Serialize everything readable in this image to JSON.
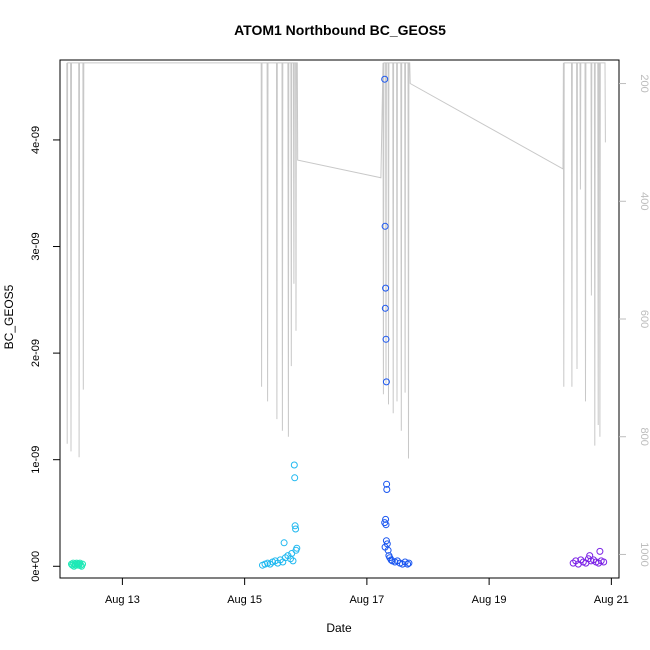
{
  "chart_data": {
    "type": "scatter",
    "title": "ATOM1 Northbound BC_GEOS5",
    "xlabel": "Date",
    "ylabel": "BC_GEOS5",
    "x_axis_type": "date",
    "xlim": [
      "2016-08-11 23:30",
      "2016-08-21 03:00"
    ],
    "ylim": [
      -1.1e-10,
      4.75e-09
    ],
    "x_ticks": [
      {
        "label": "Aug 13",
        "value": "2016-08-13"
      },
      {
        "label": "Aug 15",
        "value": "2016-08-15"
      },
      {
        "label": "Aug 17",
        "value": "2016-08-17"
      },
      {
        "label": "Aug 19",
        "value": "2016-08-19"
      },
      {
        "label": "Aug 21",
        "value": "2016-08-21"
      }
    ],
    "y_ticks": [
      {
        "label": "0e+00",
        "value": 0
      },
      {
        "label": "1e-09",
        "value": 1e-09
      },
      {
        "label": "2e-09",
        "value": 2e-09
      },
      {
        "label": "3e-09",
        "value": 3e-09
      },
      {
        "label": "4e-09",
        "value": 4e-09
      }
    ],
    "y2_axis": {
      "reversed": true,
      "range": [
        1040,
        160
      ],
      "ticks": [
        {
          "label": "200",
          "value": 200
        },
        {
          "label": "400",
          "value": 400
        },
        {
          "label": "600",
          "value": 600
        },
        {
          "label": "800",
          "value": 800
        },
        {
          "label": "1000",
          "value": 1000
        }
      ],
      "color": "#bdbdbd"
    },
    "grid": false,
    "legend": "none",
    "series": [
      {
        "marker": "open-circle",
        "color": "#1de9b6",
        "points": [
          [
            "2016-08-12 04:00",
            2e-11
          ],
          [
            "2016-08-12 04:20",
            1e-11
          ],
          [
            "2016-08-12 04:40",
            3e-11
          ],
          [
            "2016-08-12 05:00",
            0
          ],
          [
            "2016-08-12 05:20",
            2e-11
          ],
          [
            "2016-08-12 05:40",
            1e-11
          ],
          [
            "2016-08-12 06:00",
            3e-11
          ],
          [
            "2016-08-12 06:20",
            2e-11
          ],
          [
            "2016-08-12 06:40",
            1e-11
          ],
          [
            "2016-08-12 07:00",
            2e-11
          ],
          [
            "2016-08-12 07:20",
            3e-11
          ],
          [
            "2016-08-12 07:40",
            1e-11
          ],
          [
            "2016-08-12 08:00",
            0
          ],
          [
            "2016-08-12 08:20",
            2e-11
          ]
        ]
      },
      {
        "marker": "open-circle",
        "color": "#1fb8f0",
        "points": [
          [
            "2016-08-15 07:00",
            1e-11
          ],
          [
            "2016-08-15 08:00",
            2e-11
          ],
          [
            "2016-08-15 09:00",
            3e-11
          ],
          [
            "2016-08-15 10:00",
            2e-11
          ],
          [
            "2016-08-15 11:00",
            4e-11
          ],
          [
            "2016-08-15 12:00",
            5e-11
          ],
          [
            "2016-08-15 13:00",
            3e-11
          ],
          [
            "2016-08-15 14:00",
            6e-11
          ],
          [
            "2016-08-15 15:00",
            4e-11
          ],
          [
            "2016-08-15 15:30",
            2.2e-10
          ],
          [
            "2016-08-15 16:00",
            8e-11
          ],
          [
            "2016-08-15 17:00",
            1e-10
          ],
          [
            "2016-08-15 18:00",
            7e-11
          ],
          [
            "2016-08-15 18:30",
            1.2e-10
          ],
          [
            "2016-08-15 19:00",
            5e-11
          ],
          [
            "2016-08-15 19:30",
            9.5e-10
          ],
          [
            "2016-08-15 19:40",
            8.3e-10
          ],
          [
            "2016-08-15 19:50",
            3.8e-10
          ],
          [
            "2016-08-15 20:00",
            3.5e-10
          ],
          [
            "2016-08-15 20:10",
            1.5e-10
          ],
          [
            "2016-08-15 20:30",
            1.7e-10
          ]
        ]
      },
      {
        "marker": "open-circle",
        "color": "#1a56f0",
        "points": [
          [
            "2016-08-17 07:00",
            4.57e-09
          ],
          [
            "2016-08-17 07:10",
            3.19e-09
          ],
          [
            "2016-08-17 07:20",
            2.61e-09
          ],
          [
            "2016-08-17 07:15",
            2.42e-09
          ],
          [
            "2016-08-17 07:30",
            2.13e-09
          ],
          [
            "2016-08-17 07:40",
            1.73e-09
          ],
          [
            "2016-08-17 07:45",
            7.7e-10
          ],
          [
            "2016-08-17 07:50",
            7.2e-10
          ],
          [
            "2016-08-17 07:20",
            4.4e-10
          ],
          [
            "2016-08-17 07:00",
            4.1e-10
          ],
          [
            "2016-08-17 07:30",
            3.9e-10
          ],
          [
            "2016-08-17 07:40",
            2.4e-10
          ],
          [
            "2016-08-17 08:00",
            2.1e-10
          ],
          [
            "2016-08-17 07:10",
            1.8e-10
          ],
          [
            "2016-08-17 08:20",
            1.5e-10
          ],
          [
            "2016-08-17 08:40",
            1e-10
          ],
          [
            "2016-08-17 09:00",
            8e-11
          ],
          [
            "2016-08-17 09:30",
            6e-11
          ],
          [
            "2016-08-17 10:00",
            5e-11
          ],
          [
            "2016-08-17 11:00",
            4e-11
          ],
          [
            "2016-08-17 12:00",
            5e-11
          ],
          [
            "2016-08-17 13:00",
            3e-11
          ],
          [
            "2016-08-17 14:00",
            2e-11
          ],
          [
            "2016-08-17 15:00",
            4e-11
          ],
          [
            "2016-08-17 16:00",
            2e-11
          ],
          [
            "2016-08-17 16:30",
            3e-11
          ]
        ]
      },
      {
        "marker": "open-circle",
        "color": "#7b22e6",
        "points": [
          [
            "2016-08-20 09:00",
            3e-11
          ],
          [
            "2016-08-20 10:00",
            5e-11
          ],
          [
            "2016-08-20 11:00",
            2e-11
          ],
          [
            "2016-08-20 12:00",
            6e-11
          ],
          [
            "2016-08-20 13:00",
            4e-11
          ],
          [
            "2016-08-20 14:00",
            3e-11
          ],
          [
            "2016-08-20 15:00",
            7e-11
          ],
          [
            "2016-08-20 15:30",
            1e-10
          ],
          [
            "2016-08-20 16:00",
            5e-11
          ],
          [
            "2016-08-20 17:00",
            6e-11
          ],
          [
            "2016-08-20 18:00",
            4e-11
          ],
          [
            "2016-08-20 19:00",
            3e-11
          ],
          [
            "2016-08-20 19:30",
            1.4e-10
          ],
          [
            "2016-08-20 20:00",
            5e-11
          ],
          [
            "2016-08-20 21:00",
            4e-11
          ]
        ]
      }
    ],
    "altitude_trace": {
      "color": "#c8c8c8",
      "axis": "y2",
      "points": [
        [
          "2016-08-12 02:10",
          165
        ],
        [
          "2016-08-12 02:20",
          812
        ],
        [
          "2016-08-12 02:30",
          165
        ],
        [
          "2016-08-12 03:40",
          165
        ],
        [
          "2016-08-12 03:50",
          825
        ],
        [
          "2016-08-12 04:00",
          165
        ],
        [
          "2016-08-12 06:50",
          165
        ],
        [
          "2016-08-12 07:00",
          835
        ],
        [
          "2016-08-12 07:10",
          165
        ],
        [
          "2016-08-12 08:30",
          165
        ],
        [
          "2016-08-12 08:40",
          720
        ],
        [
          "2016-08-12 08:50",
          165
        ],
        [
          "2016-08-12 09:10",
          165
        ],
        [
          "2016-08-15 06:30",
          165
        ],
        [
          "2016-08-15 06:40",
          715
        ],
        [
          "2016-08-15 06:50",
          165
        ],
        [
          "2016-08-15 08:50",
          165
        ],
        [
          "2016-08-15 09:00",
          740
        ],
        [
          "2016-08-15 09:10",
          165
        ],
        [
          "2016-08-15 12:30",
          165
        ],
        [
          "2016-08-15 12:40",
          770
        ],
        [
          "2016-08-15 12:50",
          165
        ],
        [
          "2016-08-15 14:40",
          165
        ],
        [
          "2016-08-15 14:50",
          790
        ],
        [
          "2016-08-15 15:00",
          165
        ],
        [
          "2016-08-15 17:00",
          165
        ],
        [
          "2016-08-15 17:10",
          800
        ],
        [
          "2016-08-15 17:20",
          165
        ],
        [
          "2016-08-15 18:10",
          165
        ],
        [
          "2016-08-15 18:20",
          680
        ],
        [
          "2016-08-15 18:30",
          165
        ],
        [
          "2016-08-15 19:10",
          165
        ],
        [
          "2016-08-15 19:20",
          540
        ],
        [
          "2016-08-15 19:30",
          165
        ],
        [
          "2016-08-15 20:00",
          165
        ],
        [
          "2016-08-15 20:10",
          620
        ],
        [
          "2016-08-15 20:20",
          165
        ],
        [
          "2016-08-15 20:40",
          165
        ],
        [
          "2016-08-15 20:50",
          330
        ],
        [
          "2016-08-17 05:30",
          360
        ],
        [
          "2016-08-17 06:20",
          165
        ],
        [
          "2016-08-17 06:30",
          728
        ],
        [
          "2016-08-17 06:40",
          165
        ],
        [
          "2016-08-17 07:20",
          165
        ],
        [
          "2016-08-17 07:30",
          710
        ],
        [
          "2016-08-17 07:40",
          165
        ],
        [
          "2016-08-17 08:20",
          165
        ],
        [
          "2016-08-17 08:30",
          745
        ],
        [
          "2016-08-17 08:40",
          165
        ],
        [
          "2016-08-17 10:10",
          165
        ],
        [
          "2016-08-17 10:20",
          760
        ],
        [
          "2016-08-17 10:30",
          165
        ],
        [
          "2016-08-17 11:40",
          165
        ],
        [
          "2016-08-17 11:50",
          740
        ],
        [
          "2016-08-17 12:00",
          165
        ],
        [
          "2016-08-17 13:20",
          165
        ],
        [
          "2016-08-17 13:30",
          790
        ],
        [
          "2016-08-17 13:40",
          165
        ],
        [
          "2016-08-17 14:50",
          165
        ],
        [
          "2016-08-17 15:00",
          725
        ],
        [
          "2016-08-17 15:10",
          165
        ],
        [
          "2016-08-17 16:10",
          165
        ],
        [
          "2016-08-17 16:20",
          837
        ],
        [
          "2016-08-17 16:30",
          165
        ],
        [
          "2016-08-17 16:50",
          165
        ],
        [
          "2016-08-17 17:00",
          200
        ],
        [
          "2016-08-20 05:00",
          345
        ],
        [
          "2016-08-20 05:10",
          165
        ],
        [
          "2016-08-20 05:20",
          715
        ],
        [
          "2016-08-20 05:30",
          165
        ],
        [
          "2016-08-20 08:20",
          165
        ],
        [
          "2016-08-20 08:30",
          715
        ],
        [
          "2016-08-20 08:40",
          165
        ],
        [
          "2016-08-20 10:20",
          165
        ],
        [
          "2016-08-20 10:30",
          685
        ],
        [
          "2016-08-20 10:40",
          165
        ],
        [
          "2016-08-20 11:40",
          165
        ],
        [
          "2016-08-20 11:50",
          380
        ],
        [
          "2016-08-20 12:00",
          165
        ],
        [
          "2016-08-20 13:40",
          165
        ],
        [
          "2016-08-20 13:50",
          740
        ],
        [
          "2016-08-20 14:00",
          165
        ],
        [
          "2016-08-20 16:00",
          165
        ],
        [
          "2016-08-20 16:10",
          560
        ],
        [
          "2016-08-20 16:20",
          165
        ],
        [
          "2016-08-20 17:20",
          165
        ],
        [
          "2016-08-20 17:30",
          815
        ],
        [
          "2016-08-20 17:40",
          165
        ],
        [
          "2016-08-20 18:40",
          165
        ],
        [
          "2016-08-20 18:50",
          780
        ],
        [
          "2016-08-20 19:00",
          165
        ],
        [
          "2016-08-20 19:20",
          165
        ],
        [
          "2016-08-20 19:30",
          800
        ],
        [
          "2016-08-20 19:40",
          165
        ],
        [
          "2016-08-20 21:30",
          165
        ],
        [
          "2016-08-20 21:40",
          300
        ]
      ]
    }
  }
}
